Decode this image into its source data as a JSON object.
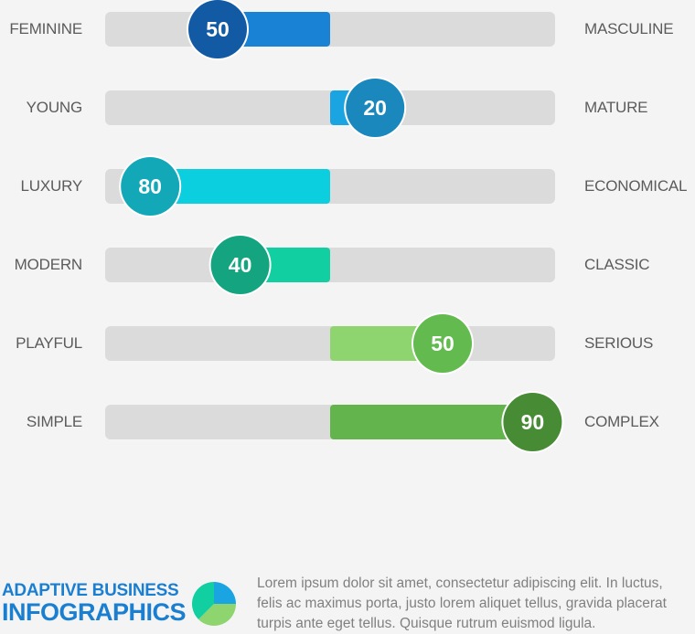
{
  "chart_data": {
    "type": "bar",
    "scale": [
      -100,
      100
    ],
    "rows": [
      {
        "left": "FEMININE",
        "right": "MASCULINE",
        "value": -50,
        "label": "50",
        "bar_color": "#1a82d4",
        "knob_color": "#125aa3"
      },
      {
        "left": "YOUNG",
        "right": "MATURE",
        "value": 20,
        "label": "20",
        "bar_color": "#1aa5e2",
        "knob_color": "#1a88bd"
      },
      {
        "left": "LUXURY",
        "right": "ECONOMICAL",
        "value": -80,
        "label": "80",
        "bar_color": "#0bcfdf",
        "knob_color": "#13a8b8"
      },
      {
        "left": "MODERN",
        "right": "CLASSIC",
        "value": -40,
        "label": "40",
        "bar_color": "#11cfa0",
        "knob_color": "#14a580"
      },
      {
        "left": "PLAYFUL",
        "right": "SERIOUS",
        "value": 50,
        "label": "50",
        "bar_color": "#8ed56f",
        "knob_color": "#63ba4f"
      },
      {
        "left": "SIMPLE",
        "right": "COMPLEX",
        "value": 90,
        "label": "90",
        "bar_color": "#63b44c",
        "knob_color": "#478c35"
      }
    ],
    "track_color": "#dbdbdb"
  },
  "footer": {
    "title_line1": "ADAPTIVE BUSINESS",
    "title_line2": "INFOGRAPHICS",
    "text_lines": [
      "Lorem ipsum dolor sit amet, consectetur adipiscing elit. In luctus,",
      "felis ac maximus porta, justo lorem aliquet tellus, gravida placerat",
      "turpis ante eget tellus. Quisque rutrum euismod ligula."
    ],
    "logo_colors": [
      "#1aa5e2",
      "#8ed56f",
      "#11cfa0"
    ]
  }
}
